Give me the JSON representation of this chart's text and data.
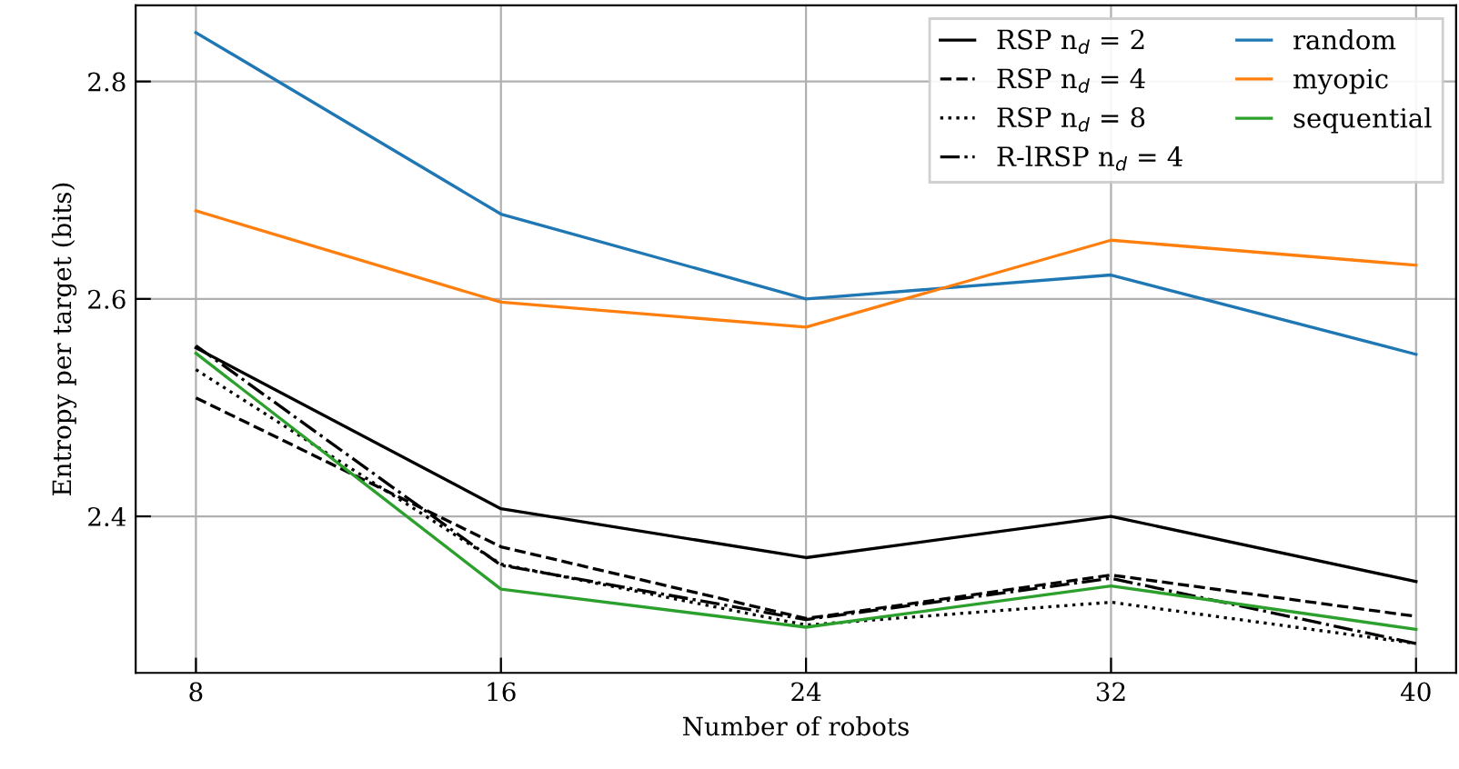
{
  "chart_data": {
    "type": "line",
    "xlabel": "Number of robots",
    "ylabel": "Entropy per target (bits)",
    "x": [
      8,
      16,
      24,
      32,
      40
    ],
    "xlim": [
      6.42,
      41.05
    ],
    "xticks": [
      8,
      16,
      24,
      32,
      40
    ],
    "ylim": [
      2.256,
      2.87
    ],
    "yticks": [
      2.4,
      2.6,
      2.8
    ],
    "grid": true,
    "legend": "top right",
    "marker": "none",
    "series": [
      {
        "name": "RSP n$_{d}$ = 2",
        "color": "#000000",
        "line_style": "solid",
        "values": [
          2.555,
          2.407,
          2.362,
          2.4,
          2.34
        ]
      },
      {
        "name": "RSP n$_{d}$ = 4",
        "color": "#000000",
        "line_style": "dashed",
        "values": [
          2.509,
          2.372,
          2.306,
          2.346,
          2.308
        ]
      },
      {
        "name": "RSP n$_{d}$ = 8",
        "color": "#000000",
        "line_style": "dotted",
        "values": [
          2.535,
          2.356,
          2.3,
          2.321,
          2.283
        ]
      },
      {
        "name": "R-lRSP n$_{d}$ = 4",
        "color": "#000000",
        "line_style": "dashdot",
        "values": [
          2.557,
          2.355,
          2.305,
          2.343,
          2.283
        ]
      },
      {
        "name": "random",
        "color": "#1f77b4",
        "line_style": "solid",
        "values": [
          2.845,
          2.678,
          2.6,
          2.622,
          2.549
        ]
      },
      {
        "name": "myopic",
        "color": "#ff7f0e",
        "line_style": "solid",
        "values": [
          2.681,
          2.597,
          2.574,
          2.654,
          2.631
        ]
      },
      {
        "name": "sequential",
        "color": "#2ca02c",
        "line_style": "solid",
        "values": [
          2.55,
          2.333,
          2.298,
          2.336,
          2.296
        ]
      }
    ]
  }
}
